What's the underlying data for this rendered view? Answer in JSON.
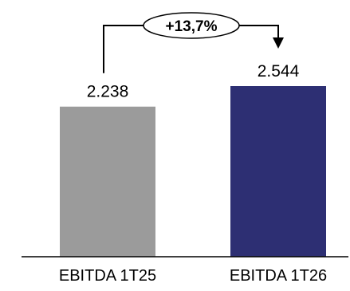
{
  "chart_data": {
    "type": "bar",
    "categories": [
      "EBITDA 1T25",
      "EBITDA 1T26"
    ],
    "values": [
      2238,
      2544
    ],
    "value_labels": [
      "2.238",
      "2.544"
    ],
    "ylim": [
      0,
      2544
    ],
    "grid": false,
    "colors": [
      "#9b9b9b",
      "#2d2f73"
    ],
    "annotation": {
      "text": "+13,7%",
      "from": "EBITDA 1T25",
      "to": "EBITDA 1T26"
    }
  }
}
